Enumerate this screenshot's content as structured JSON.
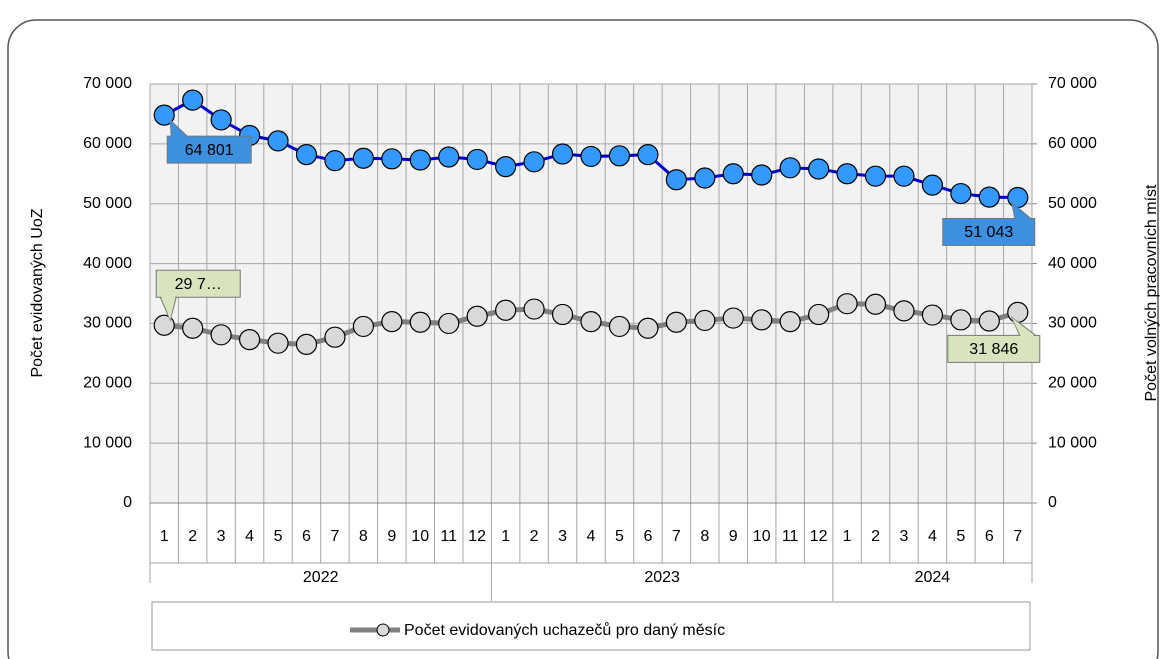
{
  "chart_data": {
    "type": "line",
    "y_label": "Počet evidovaných UoZ",
    "y2_label": "Počet volných pracovních míst",
    "categories": [
      "1",
      "2",
      "3",
      "4",
      "5",
      "6",
      "7",
      "8",
      "9",
      "10",
      "11",
      "12",
      "1",
      "2",
      "3",
      "4",
      "5",
      "6",
      "7",
      "8",
      "9",
      "10",
      "11",
      "12",
      "1",
      "2",
      "3",
      "4",
      "5",
      "6",
      "7"
    ],
    "category_groups": [
      {
        "label": "2022",
        "count": 12
      },
      {
        "label": "2023",
        "count": 12
      },
      {
        "label": "2024",
        "count": 7
      }
    ],
    "series": [
      {
        "color": "#0000cc",
        "marker_color": "#3399ff",
        "label_color": "#3d8fe0",
        "axis": "y2",
        "values": [
          64801,
          67300,
          64000,
          61400,
          60500,
          58200,
          57200,
          57600,
          57500,
          57300,
          57800,
          57400,
          56200,
          57000,
          58300,
          57900,
          58000,
          58200,
          54000,
          54300,
          55000,
          54800,
          56000,
          55800,
          55000,
          54600,
          54600,
          53100,
          51700,
          51100,
          51043
        ],
        "value_labels": [
          "64 801",
          null,
          null,
          null,
          null,
          null,
          null,
          null,
          null,
          null,
          null,
          null,
          null,
          null,
          null,
          null,
          null,
          null,
          null,
          null,
          null,
          null,
          null,
          null,
          null,
          null,
          null,
          null,
          null,
          null,
          "51 043"
        ]
      },
      {
        "name": "Počet evidovaných uchazečů pro daný měsíc",
        "color": "#808080",
        "marker_color": "#d9d9d9",
        "label_color": "#d7e4bd",
        "values": [
          29700,
          29200,
          28100,
          27300,
          26700,
          26500,
          27700,
          29500,
          30300,
          30200,
          30000,
          31200,
          32200,
          32400,
          31500,
          30300,
          29500,
          29200,
          30200,
          30500,
          30900,
          30600,
          30300,
          31500,
          33300,
          33200,
          32100,
          31400,
          30600,
          30400,
          31846
        ],
        "value_labels": [
          "29 7…",
          null,
          null,
          null,
          null,
          null,
          null,
          null,
          null,
          null,
          null,
          null,
          null,
          null,
          null,
          null,
          null,
          null,
          null,
          null,
          null,
          null,
          null,
          null,
          null,
          null,
          null,
          null,
          null,
          null,
          "31 846"
        ]
      }
    ],
    "ylim": [
      0,
      70000
    ],
    "yticks": [
      {
        "value": 0,
        "label": "0"
      },
      {
        "value": 10000,
        "label": "10 000"
      },
      {
        "value": 20000,
        "label": "20 000"
      },
      {
        "value": 30000,
        "label": "30 000"
      },
      {
        "value": 40000,
        "label": "40 000"
      },
      {
        "value": 50000,
        "label": "50 000"
      },
      {
        "value": 60000,
        "label": "60 000"
      },
      {
        "value": 70000,
        "label": "70 000"
      }
    ],
    "y2lim": [
      0,
      70000
    ],
    "y2ticks": [
      {
        "value": 0,
        "label": "0"
      },
      {
        "value": 10000,
        "label": "10 000"
      },
      {
        "value": 20000,
        "label": "20 000"
      },
      {
        "value": 30000,
        "label": "30 000"
      },
      {
        "value": 40000,
        "label": "40 000"
      },
      {
        "value": 50000,
        "label": "50 000"
      },
      {
        "value": 60000,
        "label": "60 000"
      },
      {
        "value": 70000,
        "label": "70 000"
      }
    ],
    "grid": true
  }
}
